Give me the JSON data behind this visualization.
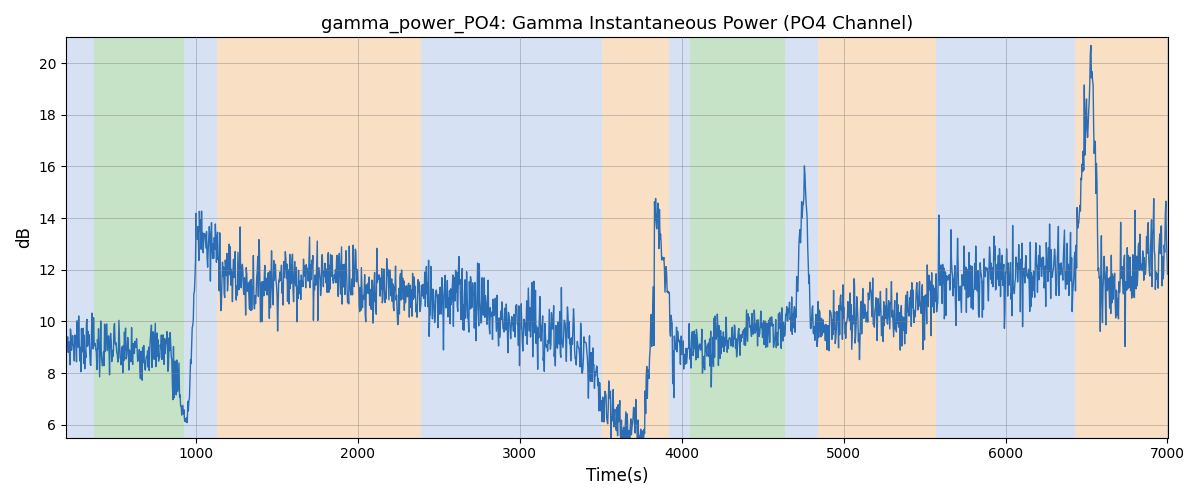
{
  "title": "gamma_power_PO4: Gamma Instantaneous Power (PO4 Channel)",
  "xlabel": "Time(s)",
  "ylabel": "dB",
  "xlim": [
    200,
    7000
  ],
  "ylim": [
    5.5,
    21
  ],
  "yticks": [
    6,
    8,
    10,
    12,
    14,
    16,
    18,
    20
  ],
  "xticks": [
    1000,
    2000,
    3000,
    4000,
    5000,
    6000,
    7000
  ],
  "line_color": "#2a6db5",
  "line_width": 1.0,
  "bg_regions": [
    {
      "xmin": 200,
      "xmax": 370,
      "color": "#aec6e8",
      "alpha": 0.5
    },
    {
      "xmin": 370,
      "xmax": 930,
      "color": "#90c990",
      "alpha": 0.5
    },
    {
      "xmin": 930,
      "xmax": 1130,
      "color": "#aec6e8",
      "alpha": 0.5
    },
    {
      "xmin": 1130,
      "xmax": 2390,
      "color": "#f5c08a",
      "alpha": 0.5
    },
    {
      "xmin": 2390,
      "xmax": 3510,
      "color": "#aec6e8",
      "alpha": 0.5
    },
    {
      "xmin": 3510,
      "xmax": 3920,
      "color": "#f5c08a",
      "alpha": 0.5
    },
    {
      "xmin": 3920,
      "xmax": 4050,
      "color": "#aec6e8",
      "alpha": 0.5
    },
    {
      "xmin": 4050,
      "xmax": 4640,
      "color": "#90c990",
      "alpha": 0.5
    },
    {
      "xmin": 4640,
      "xmax": 4840,
      "color": "#aec6e8",
      "alpha": 0.5
    },
    {
      "xmin": 4840,
      "xmax": 5570,
      "color": "#f5c08a",
      "alpha": 0.5
    },
    {
      "xmin": 5570,
      "xmax": 6430,
      "color": "#aec6e8",
      "alpha": 0.5
    },
    {
      "xmin": 6430,
      "xmax": 7000,
      "color": "#f5c08a",
      "alpha": 0.5
    }
  ],
  "figsize": [
    12.0,
    5.0
  ],
  "dpi": 100
}
